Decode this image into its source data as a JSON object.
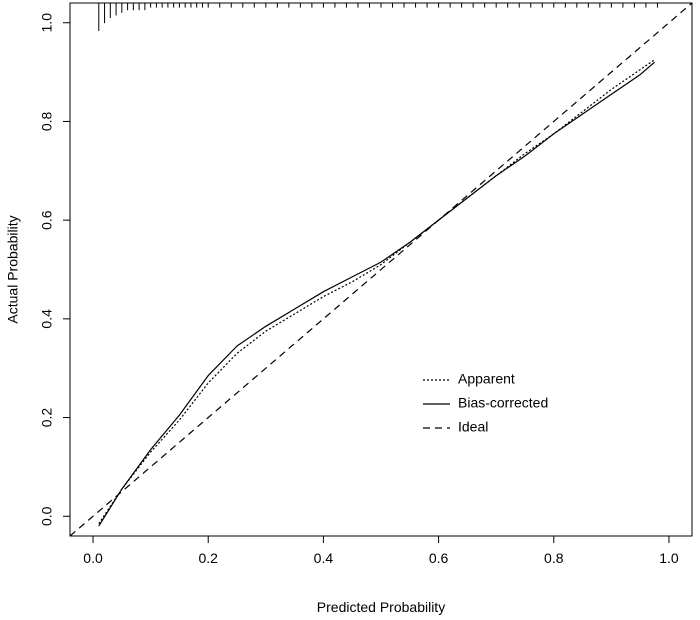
{
  "chart_data": {
    "type": "line",
    "title": "",
    "xlabel": "Predicted Probability",
    "ylabel": "Actual Probability",
    "xlim": [
      -0.04,
      1.04
    ],
    "ylim": [
      -0.04,
      1.04
    ],
    "x_ticks": [
      0.0,
      0.2,
      0.4,
      0.6,
      0.8,
      1.0
    ],
    "x_tick_labels": [
      "0.0",
      "0.2",
      "0.4",
      "0.6",
      "0.8",
      "1.0"
    ],
    "y_ticks": [
      0.0,
      0.2,
      0.4,
      0.6,
      0.8,
      1.0
    ],
    "y_tick_labels": [
      "0.0",
      "0.2",
      "0.4",
      "0.6",
      "0.8",
      "1.0"
    ],
    "grid": false,
    "legend_position": "bottom-right",
    "series": [
      {
        "name": "Apparent",
        "line_style": "dotted",
        "color": "#000000",
        "x": [
          0.01,
          0.05,
          0.1,
          0.15,
          0.2,
          0.25,
          0.3,
          0.35,
          0.4,
          0.45,
          0.5,
          0.55,
          0.6,
          0.65,
          0.7,
          0.75,
          0.8,
          0.85,
          0.9,
          0.95,
          0.975
        ],
        "y": [
          -0.015,
          0.055,
          0.13,
          0.195,
          0.27,
          0.33,
          0.375,
          0.41,
          0.445,
          0.475,
          0.51,
          0.555,
          0.6,
          0.645,
          0.69,
          0.735,
          0.775,
          0.82,
          0.865,
          0.905,
          0.925
        ]
      },
      {
        "name": "Bias-corrected",
        "line_style": "solid",
        "color": "#000000",
        "x": [
          0.01,
          0.05,
          0.1,
          0.15,
          0.2,
          0.25,
          0.3,
          0.35,
          0.4,
          0.45,
          0.5,
          0.55,
          0.6,
          0.65,
          0.7,
          0.75,
          0.8,
          0.85,
          0.9,
          0.95,
          0.975
        ],
        "y": [
          -0.02,
          0.055,
          0.135,
          0.205,
          0.285,
          0.345,
          0.385,
          0.42,
          0.455,
          0.485,
          0.515,
          0.555,
          0.6,
          0.645,
          0.69,
          0.73,
          0.775,
          0.815,
          0.855,
          0.895,
          0.92
        ]
      },
      {
        "name": "Ideal",
        "line_style": "dashed",
        "color": "#000000",
        "x": [
          -0.04,
          1.04
        ],
        "y": [
          -0.04,
          1.04
        ]
      }
    ],
    "rug_marks": {
      "x": [
        0.01,
        0.02,
        0.03,
        0.04,
        0.05,
        0.06,
        0.07,
        0.08,
        0.09,
        0.1,
        0.11,
        0.12,
        0.13,
        0.14,
        0.15,
        0.16,
        0.17,
        0.18,
        0.19,
        0.2,
        0.22,
        0.24,
        0.26,
        0.28,
        0.3,
        0.32,
        0.34,
        0.36,
        0.38,
        0.4,
        0.42,
        0.44,
        0.46,
        0.48,
        0.5,
        0.52,
        0.54,
        0.56,
        0.58,
        0.6,
        0.62,
        0.64,
        0.66,
        0.68,
        0.7,
        0.72,
        0.74,
        0.76,
        0.78,
        0.8,
        0.82,
        0.84,
        0.86,
        0.88,
        0.9,
        0.92,
        0.94,
        0.96,
        0.98
      ],
      "counts": [
        10,
        7,
        5,
        4,
        3,
        2,
        2,
        2,
        2,
        1,
        1,
        1,
        1,
        1,
        1,
        1,
        1,
        1,
        1,
        1,
        1,
        1,
        1,
        1,
        1,
        1,
        1,
        1,
        1,
        1,
        1,
        1,
        1,
        1,
        1,
        1,
        1,
        1,
        1,
        1,
        1,
        1,
        1,
        1,
        1,
        1,
        1,
        1,
        1,
        1,
        1,
        1,
        1,
        1,
        1,
        1,
        1,
        1,
        1
      ]
    }
  }
}
